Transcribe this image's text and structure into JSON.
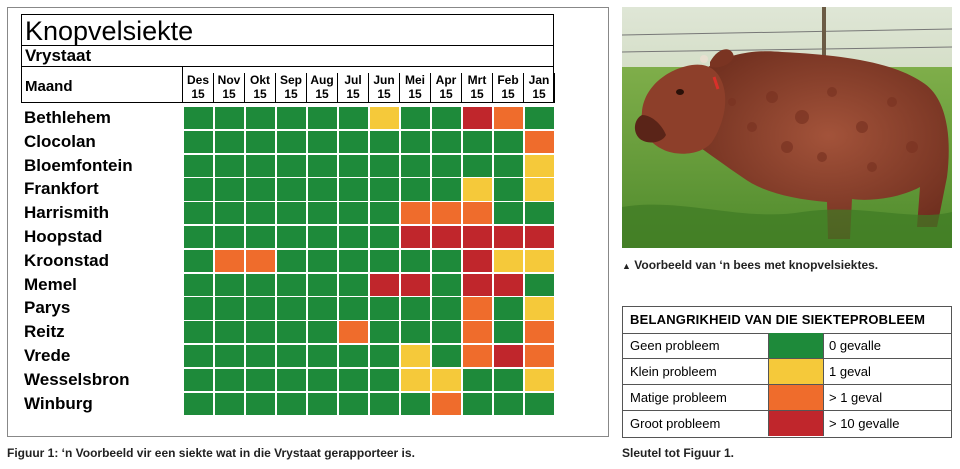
{
  "chart_data": {
    "type": "heatmap",
    "title": "Knopvelsiekte",
    "subtitle": "Vrystaat",
    "row_header": "Maand",
    "columns": [
      {
        "month": "Des",
        "year": "15"
      },
      {
        "month": "Nov",
        "year": "15"
      },
      {
        "month": "Okt",
        "year": "15"
      },
      {
        "month": "Sep",
        "year": "15"
      },
      {
        "month": "Aug",
        "year": "15"
      },
      {
        "month": "Jul",
        "year": "15"
      },
      {
        "month": "Jun",
        "year": "15"
      },
      {
        "month": "Mei",
        "year": "15"
      },
      {
        "month": "Apr",
        "year": "15"
      },
      {
        "month": "Mrt",
        "year": "15"
      },
      {
        "month": "Feb",
        "year": "15"
      },
      {
        "month": "Jan",
        "year": "15"
      }
    ],
    "rows": [
      "Bethlehem",
      "Clocolan",
      "Bloemfontein",
      "Frankfort",
      "Harrismith",
      "Hoopstad",
      "Kroonstad",
      "Memel",
      "Parys",
      "Reitz",
      "Vrede",
      "Wesselsbron",
      "Winburg"
    ],
    "levels": [
      [
        0,
        0,
        0,
        0,
        0,
        0,
        1,
        0,
        0,
        3,
        2,
        0
      ],
      [
        0,
        0,
        0,
        0,
        0,
        0,
        0,
        0,
        0,
        0,
        0,
        2
      ],
      [
        0,
        0,
        0,
        0,
        0,
        0,
        0,
        0,
        0,
        0,
        0,
        1
      ],
      [
        0,
        0,
        0,
        0,
        0,
        0,
        0,
        0,
        0,
        1,
        0,
        1
      ],
      [
        0,
        0,
        0,
        0,
        0,
        0,
        0,
        2,
        2,
        2,
        0,
        0
      ],
      [
        0,
        0,
        0,
        0,
        0,
        0,
        0,
        3,
        3,
        3,
        3,
        3
      ],
      [
        0,
        2,
        2,
        0,
        0,
        0,
        0,
        0,
        0,
        3,
        1,
        1
      ],
      [
        0,
        0,
        0,
        0,
        0,
        0,
        3,
        3,
        0,
        3,
        3,
        0
      ],
      [
        0,
        0,
        0,
        0,
        0,
        0,
        0,
        0,
        0,
        2,
        0,
        1
      ],
      [
        0,
        0,
        0,
        0,
        0,
        2,
        0,
        0,
        0,
        2,
        0,
        2
      ],
      [
        0,
        0,
        0,
        0,
        0,
        0,
        0,
        1,
        0,
        2,
        3,
        2
      ],
      [
        0,
        0,
        0,
        0,
        0,
        0,
        0,
        1,
        1,
        0,
        0,
        1
      ],
      [
        0,
        0,
        0,
        0,
        0,
        0,
        0,
        0,
        2,
        0,
        0,
        0
      ]
    ],
    "legend": {
      "title": "BELANGRIKHEID VAN DIE SIEKTEPROBLEEM",
      "entries": [
        {
          "label": "Geen probleem",
          "value": "0 gevalle",
          "color": "#1e8a3a"
        },
        {
          "label": "Klein probleem",
          "value": "1 geval",
          "color": "#f5c93a"
        },
        {
          "label": "Matige probleem",
          "value": "> 1 geval",
          "color": "#ef6c2c"
        },
        {
          "label": "Groot probleem",
          "value": "> 10 gevalle",
          "color": "#c0262c"
        }
      ]
    }
  },
  "captions": {
    "figure": "Figuur 1: ‘n Voorbeeld vir een siekte wat in die Vrystaat gerapporteer is.",
    "photo": "Voorbeeld van ‘n bees met knopvelsiektes.",
    "key": "Sleutel tot Figuur 1."
  },
  "photo_icon": "triangle-up-icon"
}
